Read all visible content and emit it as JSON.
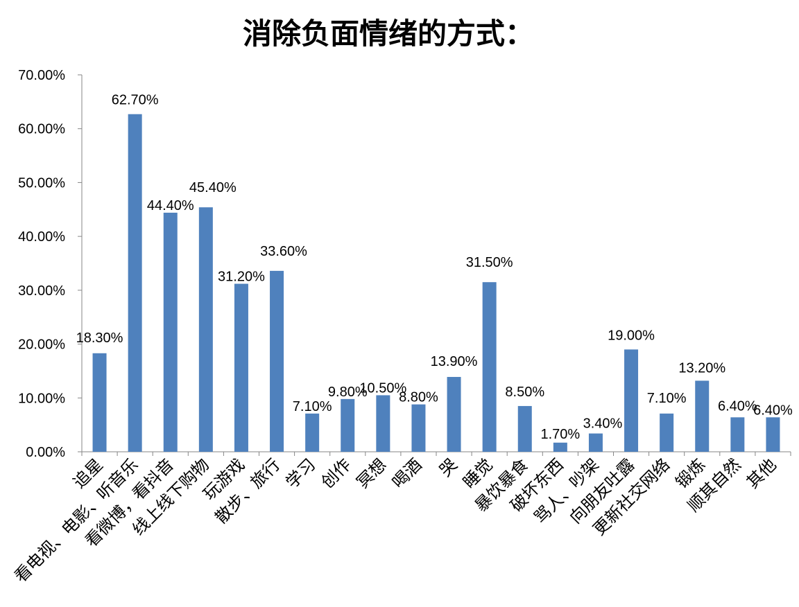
{
  "chart_data": {
    "type": "bar",
    "title": "消除负面情绪的方式：",
    "xlabel": "",
    "ylabel": "",
    "ylim": [
      0,
      70
    ],
    "yticks": [
      "0.00%",
      "10.00%",
      "20.00%",
      "30.00%",
      "40.00%",
      "50.00%",
      "60.00%",
      "70.00%"
    ],
    "grid": false,
    "legend": "none",
    "bar_color": "#4F81BD",
    "categories": [
      "追星",
      "看电视、电影、听音乐",
      "看微博，看抖音",
      "线上线下购物",
      "玩游戏",
      "散步、旅行",
      "学习",
      "创作",
      "冥想",
      "喝酒",
      "哭",
      "睡觉",
      "暴饮暴食",
      "破坏东西",
      "骂人、吵架",
      "向朋友吐露",
      "更新社交网络",
      "锻炼",
      "顺其自然",
      "其他"
    ],
    "values": [
      18.3,
      62.7,
      44.4,
      45.4,
      31.2,
      33.6,
      7.1,
      9.8,
      10.5,
      8.8,
      13.9,
      31.5,
      8.5,
      1.7,
      3.4,
      19.0,
      7.1,
      13.2,
      6.4,
      6.4
    ],
    "data_labels": [
      "18.30%",
      "62.70%",
      "44.40%",
      "45.40%",
      "31.20%",
      "33.60%",
      "7.10%",
      "9.80%",
      "10.50%",
      "8.80%",
      "13.90%",
      "31.50%",
      "8.50%",
      "1.70%",
      "3.40%",
      "19.00%",
      "7.10%",
      "13.20%",
      "6.40%",
      "6.40%"
    ]
  }
}
